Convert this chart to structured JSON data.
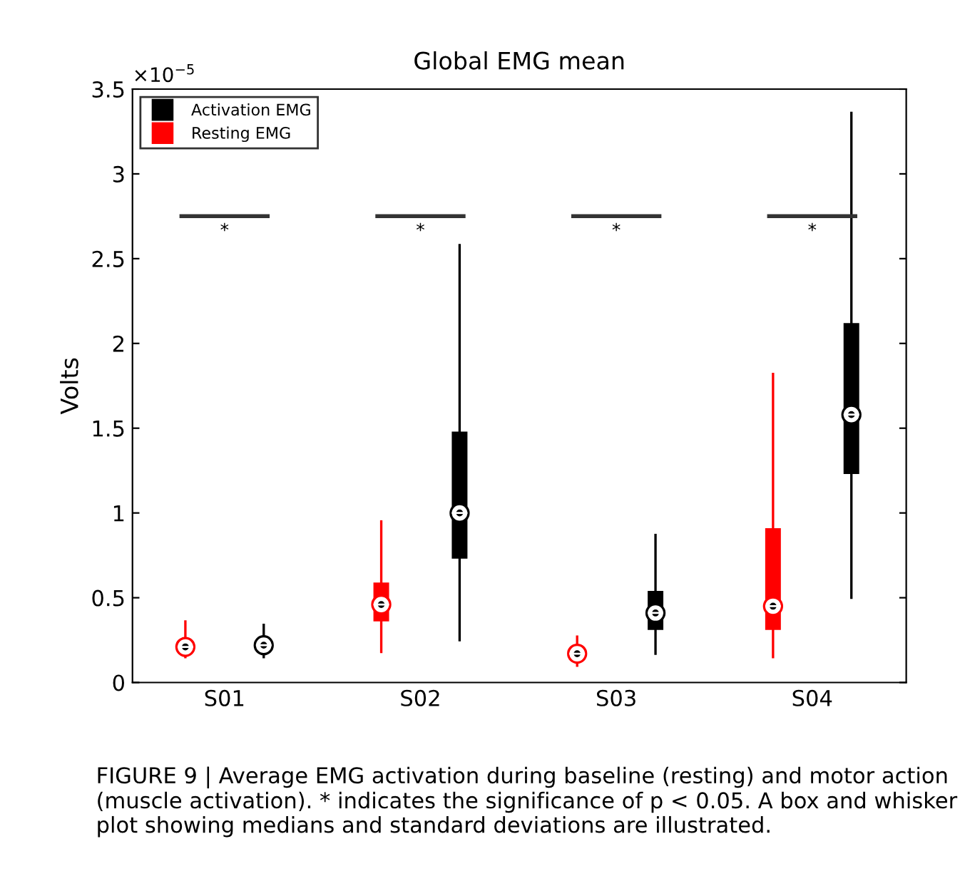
{
  "chart_data": {
    "type": "box",
    "title": "Global EMG mean",
    "ylabel": "Volts",
    "categories": [
      "S01",
      "S02",
      "S03",
      "S04"
    ],
    "series": [
      {
        "name": "Resting EMG",
        "color": "#ff0000",
        "boxes": [
          {
            "low": 0.15,
            "q1": 0.2,
            "median": 0.21,
            "q3": 0.22,
            "high": 0.36
          },
          {
            "low": 0.18,
            "q1": 0.36,
            "median": 0.46,
            "q3": 0.59,
            "high": 0.95
          },
          {
            "low": 0.1,
            "q1": 0.16,
            "median": 0.17,
            "q3": 0.18,
            "high": 0.27
          },
          {
            "low": 0.15,
            "q1": 0.31,
            "median": 0.45,
            "q3": 0.91,
            "high": 1.82
          }
        ]
      },
      {
        "name": "Activation EMG",
        "color": "#000000",
        "boxes": [
          {
            "low": 0.15,
            "q1": 0.21,
            "median": 0.22,
            "q3": 0.23,
            "high": 0.34
          },
          {
            "low": 0.25,
            "q1": 0.73,
            "median": 1.0,
            "q3": 1.48,
            "high": 2.58
          },
          {
            "low": 0.17,
            "q1": 0.31,
            "median": 0.41,
            "q3": 0.54,
            "high": 0.87
          },
          {
            "low": 0.5,
            "q1": 1.23,
            "median": 1.58,
            "q3": 2.12,
            "high": 3.36
          }
        ]
      }
    ],
    "ylim": [
      0,
      3.5
    ],
    "yticks": [
      0,
      0.5,
      1,
      1.5,
      2,
      2.5,
      3,
      3.5
    ],
    "grid": false,
    "legend": "top left",
    "annotations": [
      "*",
      "*",
      "*",
      "*",
      "×10$^{−5}$",
      "FIGURE 9 | Average EMG activation during baseline (resting) and motor action (muscle activation). * indicates the significance of p < 0.05. A box and whisker plot showing medians and standard deviations are illustrated."
    ]
  }
}
